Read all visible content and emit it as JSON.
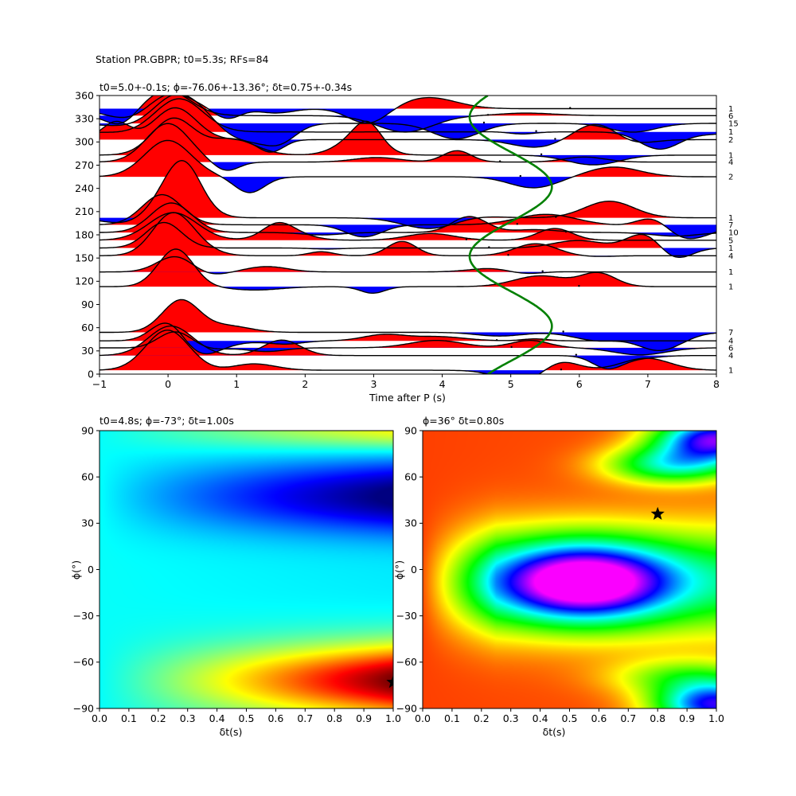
{
  "figure": {
    "suptitle": "Station PR.GBPR; t0=5.3s; RFs=84"
  },
  "chart_data": [
    {
      "type": "line",
      "title": "t0=5.0+-0.1s; ϕ=-76.06+-13.36°; δt=0.75+-0.34s",
      "xlabel": "Time after P (s)",
      "ylabel": "",
      "xlim": [
        -1,
        8
      ],
      "ylim": [
        0,
        360
      ],
      "x_ticks": [
        -1,
        0,
        1,
        2,
        3,
        4,
        5,
        6,
        7,
        8
      ],
      "y_ticks": [
        0,
        30,
        60,
        90,
        120,
        150,
        180,
        210,
        240,
        270,
        300,
        330,
        360
      ],
      "grid": false,
      "baz_bins": [
        {
          "baz": 5,
          "count": "1"
        },
        {
          "baz": 24,
          "count": "4"
        },
        {
          "baz": 34,
          "count": "6"
        },
        {
          "baz": 43,
          "count": "4"
        },
        {
          "baz": 54,
          "count": "7"
        },
        {
          "baz": 113,
          "count": "1"
        },
        {
          "baz": 132,
          "count": "1"
        },
        {
          "baz": 153,
          "count": "4"
        },
        {
          "baz": 163,
          "count": "1"
        },
        {
          "baz": 173,
          "count": "5"
        },
        {
          "baz": 183,
          "count": "10"
        },
        {
          "baz": 193,
          "count": "7"
        },
        {
          "baz": 202,
          "count": "1"
        },
        {
          "baz": 255,
          "count": "2"
        },
        {
          "baz": 274,
          "count": "4"
        },
        {
          "baz": 283,
          "count": "1"
        },
        {
          "baz": 303,
          "count": "2"
        },
        {
          "baz": 313,
          "count": "1"
        },
        {
          "baz": 324,
          "count": "15"
        },
        {
          "baz": 334,
          "count": "6"
        },
        {
          "baz": 343,
          "count": "1"
        }
      ],
      "fill_colors": {
        "positive": "#ff0000",
        "negative": "#0000ff",
        "trace": "#000000",
        "t0_curve": "#008000"
      },
      "t0_curve": {
        "mean": 5.0,
        "amplitude": 0.6,
        "phase_deg": -76
      }
    },
    {
      "type": "heatmap",
      "title": "t0=4.8s; ϕ=-73°; δt=1.00s",
      "xlabel": "δt(s)",
      "ylabel": "ϕ(°)",
      "xlim": [
        0,
        1
      ],
      "ylim": [
        -90,
        90
      ],
      "x_ticks": [
        "0.0",
        "0.1",
        "0.2",
        "0.3",
        "0.4",
        "0.5",
        "0.6",
        "0.7",
        "0.8",
        "0.9",
        "1.0"
      ],
      "y_ticks": [
        -90,
        -60,
        -30,
        0,
        30,
        60,
        90
      ],
      "colormap": "jet",
      "best": {
        "dt": 1.0,
        "phi": -73
      }
    },
    {
      "type": "heatmap",
      "title": "ϕ=36° δt=0.80s",
      "xlabel": "δt(s)",
      "ylabel": "ϕ(°)",
      "xlim": [
        0,
        1
      ],
      "ylim": [
        -90,
        90
      ],
      "x_ticks": [
        "0.0",
        "0.1",
        "0.2",
        "0.3",
        "0.4",
        "0.5",
        "0.6",
        "0.7",
        "0.8",
        "0.9",
        "1.0"
      ],
      "y_ticks": [
        -90,
        -60,
        -30,
        0,
        30,
        60,
        90
      ],
      "colormap": "hsv",
      "best": {
        "dt": 0.8,
        "phi": 36
      }
    }
  ]
}
